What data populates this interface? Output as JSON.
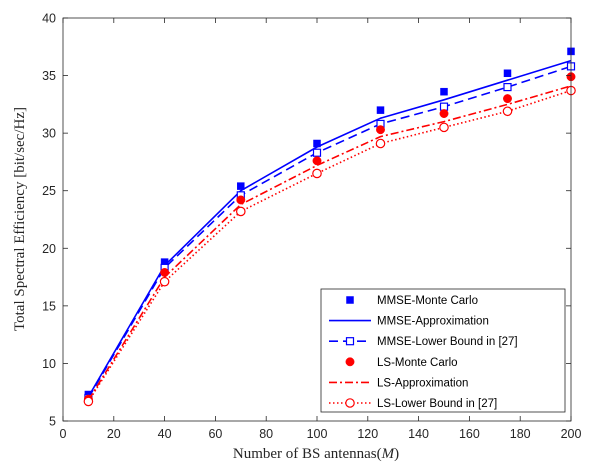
{
  "chart_data": {
    "type": "line",
    "xlabel": "Number of BS antennas(",
    "xlabel_var": "M",
    "xlabel_close": ")",
    "ylabel": "Total Spectral Efficiency [bit/sec/Hz]",
    "xlim": [
      0,
      200
    ],
    "ylim": [
      5,
      40
    ],
    "xticks": [
      0,
      20,
      40,
      60,
      80,
      100,
      120,
      140,
      160,
      180,
      200
    ],
    "yticks": [
      5,
      10,
      15,
      20,
      25,
      30,
      35,
      40
    ],
    "grid": false,
    "legend_position": "bottom-right",
    "x": [
      10,
      40,
      70,
      100,
      125,
      150,
      175,
      200
    ],
    "series": [
      {
        "name": "MMSE-Monte Carlo",
        "values": [
          7.3,
          18.8,
          25.4,
          29.1,
          32.0,
          33.6,
          35.2,
          37.1
        ],
        "color": "#0000ff",
        "line": "none",
        "marker": "filled-square"
      },
      {
        "name": "MMSE-Approximation",
        "values": [
          7.1,
          18.5,
          25.0,
          28.8,
          31.3,
          32.9,
          34.6,
          36.3
        ],
        "color": "#0000ff",
        "line": "solid",
        "marker": "none"
      },
      {
        "name": "MMSE-Lower Bound in [27]",
        "values": [
          7.0,
          18.3,
          24.6,
          28.3,
          30.8,
          32.3,
          34.0,
          35.8
        ],
        "color": "#0000ff",
        "line": "dashed",
        "marker": "open-square"
      },
      {
        "name": "LS-Monte Carlo",
        "values": [
          6.9,
          17.9,
          24.2,
          27.6,
          30.3,
          31.7,
          33.0,
          34.9
        ],
        "color": "#ff0000",
        "line": "none",
        "marker": "filled-circle"
      },
      {
        "name": "LS-Approximation",
        "values": [
          6.8,
          17.5,
          23.8,
          27.2,
          29.7,
          31.0,
          32.5,
          34.1
        ],
        "color": "#ff0000",
        "line": "dashdot",
        "marker": "none"
      },
      {
        "name": "LS-Lower Bound in [27]",
        "values": [
          6.7,
          17.1,
          23.2,
          26.5,
          29.1,
          30.5,
          31.9,
          33.7
        ],
        "color": "#ff0000",
        "line": "dotted",
        "marker": "open-circle"
      }
    ]
  }
}
